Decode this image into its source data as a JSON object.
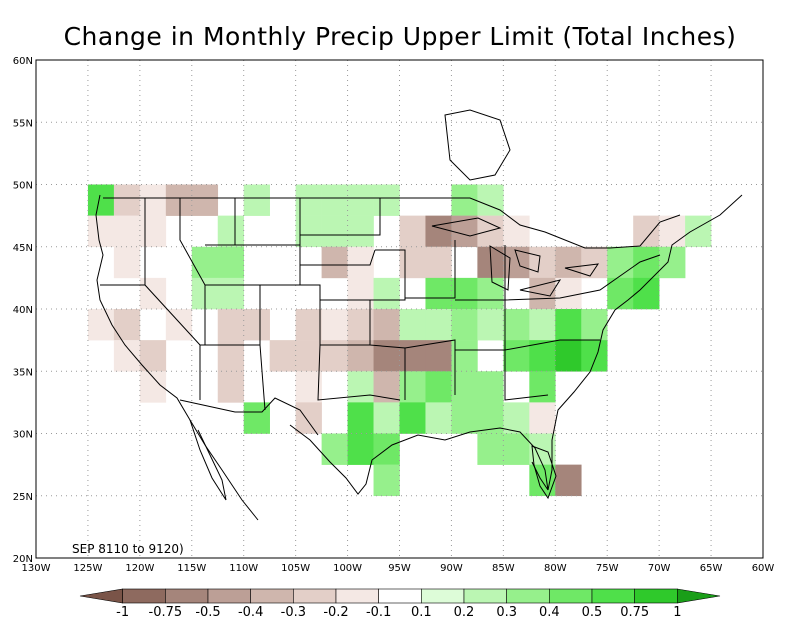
{
  "title": "Change in Monthly Precip Upper Limit (Total Inches)",
  "period": "SEP 8110 to 9120)",
  "lat_labels": [
    "60N",
    "55N",
    "50N",
    "45N",
    "40N",
    "35N",
    "30N",
    "25N",
    "20N"
  ],
  "lat_values": [
    60,
    55,
    50,
    45,
    40,
    35,
    30,
    25,
    20
  ],
  "lon_labels": [
    "130W",
    "125W",
    "120W",
    "115W",
    "110W",
    "105W",
    "100W",
    "95W",
    "90W",
    "85W",
    "80W",
    "75W",
    "70W",
    "65W",
    "60W"
  ],
  "lon_values": [
    -130,
    -125,
    -120,
    -115,
    -110,
    -105,
    -100,
    -95,
    -90,
    -85,
    -80,
    -75,
    -70,
    -65,
    -60
  ],
  "colorbar": {
    "labels": [
      "-1",
      "-0.75",
      "-0.5",
      "-0.4",
      "-0.3",
      "-0.2",
      "-0.1",
      "0.1",
      "0.2",
      "0.3",
      "0.4",
      "0.5",
      "0.75",
      "1"
    ],
    "colors": [
      "#7a5448",
      "#8e6a5f",
      "#a5857b",
      "#bc9f96",
      "#cfb6ad",
      "#e3cfc8",
      "#f4e8e4",
      "#ffffff",
      "#ddfcd8",
      "#bbf6b3",
      "#96f08c",
      "#6fe866",
      "#4fe04a",
      "#2fc92b",
      "#1a9e18"
    ]
  },
  "chart_data": {
    "type": "heatmap",
    "title": "Change in Monthly Precip Upper Limit (Total Inches)",
    "xlim": [
      -130,
      -60
    ],
    "ylim": [
      20,
      60
    ],
    "grid": true,
    "cell_size_deg": 2.5,
    "classes": [
      "<-1",
      "-1..-0.75",
      "-0.75..-0.5",
      "-0.5..-0.4",
      "-0.4..-0.3",
      "-0.3..-0.2",
      "-0.2..-0.1",
      "-0.1..0.1",
      "0.1..0.2",
      "0.2..0.3",
      "0.3..0.4",
      "0.4..0.5",
      "0.5..0.75",
      "0.75..1",
      ">1"
    ],
    "cells": [
      {
        "lon": -123.75,
        "lat": 48.75,
        "v": 0.55
      },
      {
        "lon": -121.25,
        "lat": 48.75,
        "v": -0.25
      },
      {
        "lon": -118.75,
        "lat": 48.75,
        "v": -0.2
      },
      {
        "lon": -116.25,
        "lat": 48.75,
        "v": -0.35
      },
      {
        "lon": -113.75,
        "lat": 48.75,
        "v": -0.35
      },
      {
        "lon": -108.75,
        "lat": 48.75,
        "v": 0.2
      },
      {
        "lon": -103.75,
        "lat": 48.75,
        "v": 0.2
      },
      {
        "lon": -101.25,
        "lat": 48.75,
        "v": 0.2
      },
      {
        "lon": -98.75,
        "lat": 48.75,
        "v": 0.2
      },
      {
        "lon": -96.25,
        "lat": 48.75,
        "v": 0.2
      },
      {
        "lon": -88.75,
        "lat": 48.75,
        "v": 0.3
      },
      {
        "lon": -86.25,
        "lat": 48.75,
        "v": 0.2
      },
      {
        "lon": -71.25,
        "lat": 46.25,
        "v": -0.3
      },
      {
        "lon": -68.75,
        "lat": 46.25,
        "v": -0.2
      },
      {
        "lon": -123.75,
        "lat": 46.25,
        "v": -0.2
      },
      {
        "lon": -121.25,
        "lat": 46.25,
        "v": -0.2
      },
      {
        "lon": -118.75,
        "lat": 46.25,
        "v": -0.2
      },
      {
        "lon": -111.25,
        "lat": 46.25,
        "v": 0.2
      },
      {
        "lon": -103.75,
        "lat": 46.25,
        "v": 0.2
      },
      {
        "lon": -101.25,
        "lat": 46.25,
        "v": 0.2
      },
      {
        "lon": -98.75,
        "lat": 46.25,
        "v": 0.2
      },
      {
        "lon": -93.75,
        "lat": 46.25,
        "v": -0.3
      },
      {
        "lon": -91.25,
        "lat": 46.25,
        "v": -0.6
      },
      {
        "lon": -88.75,
        "lat": 46.25,
        "v": -0.5
      },
      {
        "lon": -86.25,
        "lat": 46.25,
        "v": -0.3
      },
      {
        "lon": -83.75,
        "lat": 46.25,
        "v": -0.2
      },
      {
        "lon": -66.25,
        "lat": 46.25,
        "v": 0.2
      },
      {
        "lon": -121.25,
        "lat": 43.75,
        "v": -0.2
      },
      {
        "lon": -113.75,
        "lat": 43.75,
        "v": 0.3
      },
      {
        "lon": -111.25,
        "lat": 43.75,
        "v": 0.3
      },
      {
        "lon": -101.25,
        "lat": 43.75,
        "v": -0.35
      },
      {
        "lon": -98.75,
        "lat": 43.75,
        "v": -0.2
      },
      {
        "lon": -93.75,
        "lat": 43.75,
        "v": -0.3
      },
      {
        "lon": -91.25,
        "lat": 43.75,
        "v": -0.3
      },
      {
        "lon": -86.25,
        "lat": 43.75,
        "v": -0.6
      },
      {
        "lon": -83.75,
        "lat": 43.75,
        "v": -0.45
      },
      {
        "lon": -81.25,
        "lat": 43.75,
        "v": -0.3
      },
      {
        "lon": -78.75,
        "lat": 43.75,
        "v": -0.35
      },
      {
        "lon": -76.25,
        "lat": 43.75,
        "v": -0.3
      },
      {
        "lon": -73.75,
        "lat": 43.75,
        "v": 0.3
      },
      {
        "lon": -71.25,
        "lat": 43.75,
        "v": 0.4
      },
      {
        "lon": -68.75,
        "lat": 43.75,
        "v": 0.3
      },
      {
        "lon": -118.75,
        "lat": 41.25,
        "v": -0.2
      },
      {
        "lon": -113.75,
        "lat": 41.25,
        "v": 0.2
      },
      {
        "lon": -111.25,
        "lat": 41.25,
        "v": 0.2
      },
      {
        "lon": -98.75,
        "lat": 41.25,
        "v": -0.2
      },
      {
        "lon": -96.25,
        "lat": 41.25,
        "v": 0.2
      },
      {
        "lon": -91.25,
        "lat": 41.25,
        "v": 0.4
      },
      {
        "lon": -88.75,
        "lat": 41.25,
        "v": 0.4
      },
      {
        "lon": -86.25,
        "lat": 41.25,
        "v": 0.3
      },
      {
        "lon": -81.25,
        "lat": 41.25,
        "v": -0.4
      },
      {
        "lon": -78.75,
        "lat": 41.25,
        "v": -0.2
      },
      {
        "lon": -73.75,
        "lat": 41.25,
        "v": 0.4
      },
      {
        "lon": -71.25,
        "lat": 41.25,
        "v": 0.5
      },
      {
        "lon": -123.75,
        "lat": 38.75,
        "v": -0.2
      },
      {
        "lon": -121.25,
        "lat": 38.75,
        "v": -0.3
      },
      {
        "lon": -116.25,
        "lat": 38.75,
        "v": -0.15
      },
      {
        "lon": -111.25,
        "lat": 38.75,
        "v": -0.3
      },
      {
        "lon": -108.75,
        "lat": 38.75,
        "v": -0.3
      },
      {
        "lon": -103.75,
        "lat": 38.75,
        "v": -0.3
      },
      {
        "lon": -101.25,
        "lat": 38.75,
        "v": -0.2
      },
      {
        "lon": -98.75,
        "lat": 38.75,
        "v": -0.3
      },
      {
        "lon": -96.25,
        "lat": 38.75,
        "v": -0.4
      },
      {
        "lon": -93.75,
        "lat": 38.75,
        "v": 0.2
      },
      {
        "lon": -91.25,
        "lat": 38.75,
        "v": 0.2
      },
      {
        "lon": -88.75,
        "lat": 38.75,
        "v": 0.3
      },
      {
        "lon": -86.25,
        "lat": 38.75,
        "v": 0.2
      },
      {
        "lon": -83.75,
        "lat": 38.75,
        "v": 0.3
      },
      {
        "lon": -81.25,
        "lat": 38.75,
        "v": 0.2
      },
      {
        "lon": -78.75,
        "lat": 38.75,
        "v": 0.5
      },
      {
        "lon": -76.25,
        "lat": 38.75,
        "v": 0.3
      },
      {
        "lon": -121.25,
        "lat": 36.25,
        "v": -0.2
      },
      {
        "lon": -118.75,
        "lat": 36.25,
        "v": -0.3
      },
      {
        "lon": -111.25,
        "lat": 36.25,
        "v": -0.3
      },
      {
        "lon": -106.25,
        "lat": 36.25,
        "v": -0.3
      },
      {
        "lon": -103.75,
        "lat": 36.25,
        "v": -0.3
      },
      {
        "lon": -101.25,
        "lat": 36.25,
        "v": -0.3
      },
      {
        "lon": -98.75,
        "lat": 36.25,
        "v": -0.4
      },
      {
        "lon": -96.25,
        "lat": 36.25,
        "v": -0.6
      },
      {
        "lon": -93.75,
        "lat": 36.25,
        "v": -0.6
      },
      {
        "lon": -91.25,
        "lat": 36.25,
        "v": -0.6
      },
      {
        "lon": -88.75,
        "lat": 36.25,
        "v": 0.3
      },
      {
        "lon": -83.75,
        "lat": 36.25,
        "v": 0.4
      },
      {
        "lon": -81.25,
        "lat": 36.25,
        "v": 0.5
      },
      {
        "lon": -78.75,
        "lat": 36.25,
        "v": 0.9
      },
      {
        "lon": -76.25,
        "lat": 36.25,
        "v": 0.6
      },
      {
        "lon": -118.75,
        "lat": 33.75,
        "v": -0.2
      },
      {
        "lon": -111.25,
        "lat": 33.75,
        "v": -0.3
      },
      {
        "lon": -103.75,
        "lat": 33.75,
        "v": -0.15
      },
      {
        "lon": -98.75,
        "lat": 33.75,
        "v": 0.2
      },
      {
        "lon": -96.25,
        "lat": 33.75,
        "v": -0.4
      },
      {
        "lon": -93.75,
        "lat": 33.75,
        "v": 0.3
      },
      {
        "lon": -91.25,
        "lat": 33.75,
        "v": 0.4
      },
      {
        "lon": -88.75,
        "lat": 33.75,
        "v": 0.3
      },
      {
        "lon": -86.25,
        "lat": 33.75,
        "v": 0.3
      },
      {
        "lon": -81.25,
        "lat": 33.75,
        "v": 0.4
      },
      {
        "lon": -108.75,
        "lat": 31.25,
        "v": 0.4
      },
      {
        "lon": -103.75,
        "lat": 31.25,
        "v": -0.3
      },
      {
        "lon": -98.75,
        "lat": 31.25,
        "v": 0.5
      },
      {
        "lon": -96.25,
        "lat": 31.25,
        "v": 0.2
      },
      {
        "lon": -93.75,
        "lat": 31.25,
        "v": 0.6
      },
      {
        "lon": -91.25,
        "lat": 31.25,
        "v": 0.2
      },
      {
        "lon": -88.75,
        "lat": 31.25,
        "v": 0.3
      },
      {
        "lon": -86.25,
        "lat": 31.25,
        "v": 0.3
      },
      {
        "lon": -83.75,
        "lat": 31.25,
        "v": 0.2
      },
      {
        "lon": -81.25,
        "lat": 31.25,
        "v": -0.2
      },
      {
        "lon": -101.25,
        "lat": 28.75,
        "v": 0.3
      },
      {
        "lon": -98.75,
        "lat": 28.75,
        "v": 0.6
      },
      {
        "lon": -96.25,
        "lat": 28.75,
        "v": 0.4
      },
      {
        "lon": -86.25,
        "lat": 28.75,
        "v": 0.3
      },
      {
        "lon": -83.75,
        "lat": 28.75,
        "v": 0.3
      },
      {
        "lon": -81.25,
        "lat": 28.75,
        "v": 0.2
      },
      {
        "lon": -96.25,
        "lat": 26.25,
        "v": 0.3
      },
      {
        "lon": -81.25,
        "lat": 26.25,
        "v": 0.4
      },
      {
        "lon": -78.75,
        "lat": 26.25,
        "v": -0.6
      }
    ]
  }
}
